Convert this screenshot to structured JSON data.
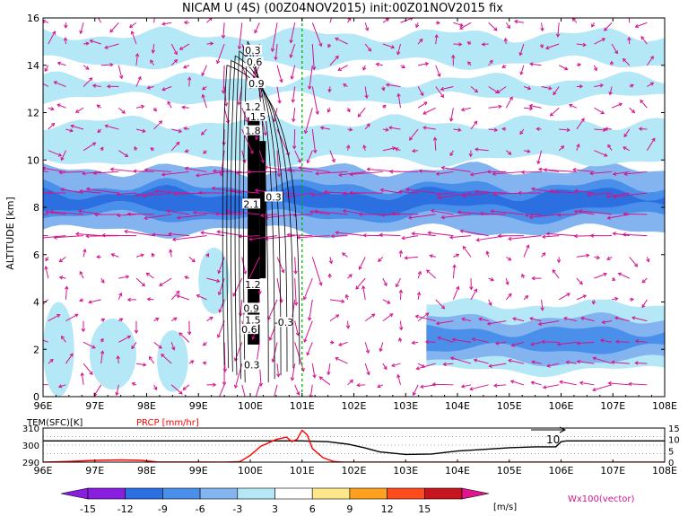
{
  "chart_data": [
    {
      "type": "heatmap",
      "title": "NICAM U (4S) (00Z04NOV2015) init:00Z01NOV2015 fix",
      "ylabel": "ALTITUDE [km]",
      "xlim": [
        96,
        108
      ],
      "ylim": [
        0,
        16
      ],
      "x_ticks": [
        "96E",
        "97E",
        "98E",
        "99E",
        "100E",
        "101E",
        "102E",
        "103E",
        "104E",
        "105E",
        "106E",
        "107E",
        "108E"
      ],
      "y_ticks": [
        "0",
        "2",
        "4",
        "6",
        "8",
        "10",
        "12",
        "14",
        "16"
      ],
      "shading_levels": [
        -15,
        -12,
        -9,
        -6,
        -3,
        3,
        6,
        9,
        12,
        15
      ],
      "shading_colors": [
        "#8a1ee0",
        "#2b6fe0",
        "#4a8fea",
        "#84b4f0",
        "#b5e8f6",
        "#ffffff",
        "#ffe88a",
        "#ffa01e",
        "#ff4b1e",
        "#c8141e"
      ],
      "neg_bands": [
        {
          "y": [
            7.0,
            9.6
          ],
          "level": -6
        },
        {
          "y": [
            7.6,
            8.9
          ],
          "level": -9
        },
        {
          "y": [
            7.95,
            8.6
          ],
          "level": -12
        },
        {
          "y": [
            10.0,
            11.6
          ],
          "level": -3
        },
        {
          "y": [
            14.1,
            15.3
          ],
          "level": -3
        },
        {
          "y": [
            12.6,
            13.4
          ],
          "level": -3
        }
      ],
      "low_region": {
        "x": [
          103.4,
          108
        ],
        "layers": [
          {
            "y": [
              1.1,
              3.9
            ],
            "level": -3
          },
          {
            "y": [
              1.5,
              3.3
            ],
            "level": -6
          },
          {
            "y": [
              2.0,
              2.8
            ],
            "level": -9
          }
        ]
      },
      "west_patches": [
        {
          "x": [
            96.0,
            96.6
          ],
          "y": [
            0.0,
            4.0
          ],
          "level": -3
        },
        {
          "x": [
            96.9,
            97.8
          ],
          "y": [
            0.3,
            3.3
          ],
          "level": -3
        },
        {
          "x": [
            98.2,
            98.8
          ],
          "y": [
            0.2,
            2.8
          ],
          "level": -3
        },
        {
          "x": [
            99.0,
            99.6
          ],
          "y": [
            3.5,
            6.3
          ],
          "level": -3
        }
      ],
      "core_strips": [
        {
          "x": [
            99.95,
            100.18
          ],
          "y": [
            2.2,
            11.8
          ]
        },
        {
          "x": [
            100.18,
            100.3
          ],
          "y": [
            5.0,
            10.8
          ]
        }
      ],
      "positive_patches": [
        {
          "x": [
            105.55,
            105.75
          ],
          "y": [
            4.4,
            4.55
          ],
          "level": 3
        },
        {
          "x": [
            106.5,
            106.9
          ],
          "y": [
            4.1,
            4.3
          ],
          "level": 3
        },
        {
          "x": [
            107.75,
            107.9
          ],
          "y": [
            5.6,
            5.75
          ],
          "level": 3
        },
        {
          "x": [
            96.0,
            96.06
          ],
          "y": [
            11.9,
            12.1
          ],
          "level": 3
        }
      ],
      "contour_labels": [
        {
          "text": "0.3",
          "x": 100.05,
          "y": 14.6
        },
        {
          "text": "0.6",
          "x": 100.08,
          "y": 14.1
        },
        {
          "text": "0.9",
          "x": 100.12,
          "y": 13.2
        },
        {
          "text": "1.2",
          "x": 100.05,
          "y": 12.2
        },
        {
          "text": "1.5",
          "x": 100.15,
          "y": 11.8
        },
        {
          "text": "1.8",
          "x": 100.05,
          "y": 11.2
        },
        {
          "text": "2.1",
          "x": 100.02,
          "y": 8.1
        },
        {
          "text": "0.3",
          "x": 100.45,
          "y": 8.4
        },
        {
          "text": "1.2",
          "x": 100.05,
          "y": 4.7
        },
        {
          "text": "0.9",
          "x": 100.02,
          "y": 3.7
        },
        {
          "text": "1.5",
          "x": 100.05,
          "y": 3.2
        },
        {
          "text": "-0.3",
          "x": 100.65,
          "y": 3.1
        },
        {
          "text": "0.6",
          "x": 99.98,
          "y": 2.8
        },
        {
          "text": "0.3",
          "x": 100.03,
          "y": 1.3
        }
      ],
      "dashed_line_x": 101.0,
      "vector_label": "Wx100(vector)"
    },
    {
      "type": "line",
      "xlim": [
        96,
        108
      ],
      "x_ticks": [
        "96E",
        "97E",
        "98E",
        "99E",
        "100E",
        "101E",
        "102E",
        "103E",
        "104E",
        "105E",
        "106E",
        "107E",
        "108E"
      ],
      "left_axis": {
        "label": "TEM(SFC)[K]",
        "ticks": [
          "290",
          "300",
          "310"
        ],
        "range": [
          290,
          310
        ]
      },
      "right_axis": {
        "label": "PRCP [mm/hr]",
        "ticks": [
          "0",
          "5",
          "10",
          "15"
        ],
        "range": [
          0,
          15
        ]
      },
      "vector_annotation": "10",
      "series": [
        {
          "name": "TEM(SFC)[K]",
          "color": "#000000",
          "x": [
            96,
            100,
            101,
            101.5,
            101.9,
            102.2,
            102.5,
            103.0,
            103.5,
            104.0,
            104.5,
            105.0,
            105.5,
            105.9,
            106.0,
            106.1,
            108.0
          ],
          "y": [
            302.5,
            302.5,
            302.5,
            302,
            300.5,
            298.5,
            296,
            294.5,
            294.8,
            296.5,
            297.5,
            298.5,
            299,
            299,
            302,
            302.5,
            302.5
          ]
        },
        {
          "name": "PRCP [mm/hr]",
          "color": "#ff0000",
          "x": [
            96.0,
            96.5,
            97.0,
            97.5,
            97.9,
            98.2,
            99.5,
            99.8,
            100.0,
            100.2,
            100.5,
            100.7,
            100.8,
            100.9,
            101.0,
            101.1,
            101.2,
            101.4,
            101.6,
            101.8,
            108.0
          ],
          "y": [
            0,
            0.3,
            0.8,
            1.0,
            0.8,
            0.1,
            0,
            0.2,
            3,
            7,
            10,
            11,
            9,
            10,
            14,
            12,
            6,
            2,
            0.3,
            0,
            0
          ]
        }
      ]
    }
  ],
  "colorbar": {
    "labels": [
      "-15",
      "-12",
      "-9",
      "-6",
      "-3",
      "3",
      "6",
      "9",
      "12",
      "15"
    ],
    "colors": [
      "#8a1ee0",
      "#2b6fe0",
      "#4a8fea",
      "#84b4f0",
      "#b5e8f6",
      "#ffffff",
      "#ffe88a",
      "#ffa01e",
      "#ff4b1e",
      "#c8141e"
    ],
    "low_end_color": "#8a1ee0",
    "high_end_color": "#e0148c",
    "unit": "[m/s]"
  },
  "colors": {
    "vector": "#d4148c",
    "contour": "#000000",
    "dashed_line": "#00b400",
    "prcp_line": "#ff0000",
    "text_red": "#ff0000",
    "vector_label": "#d4148c"
  }
}
